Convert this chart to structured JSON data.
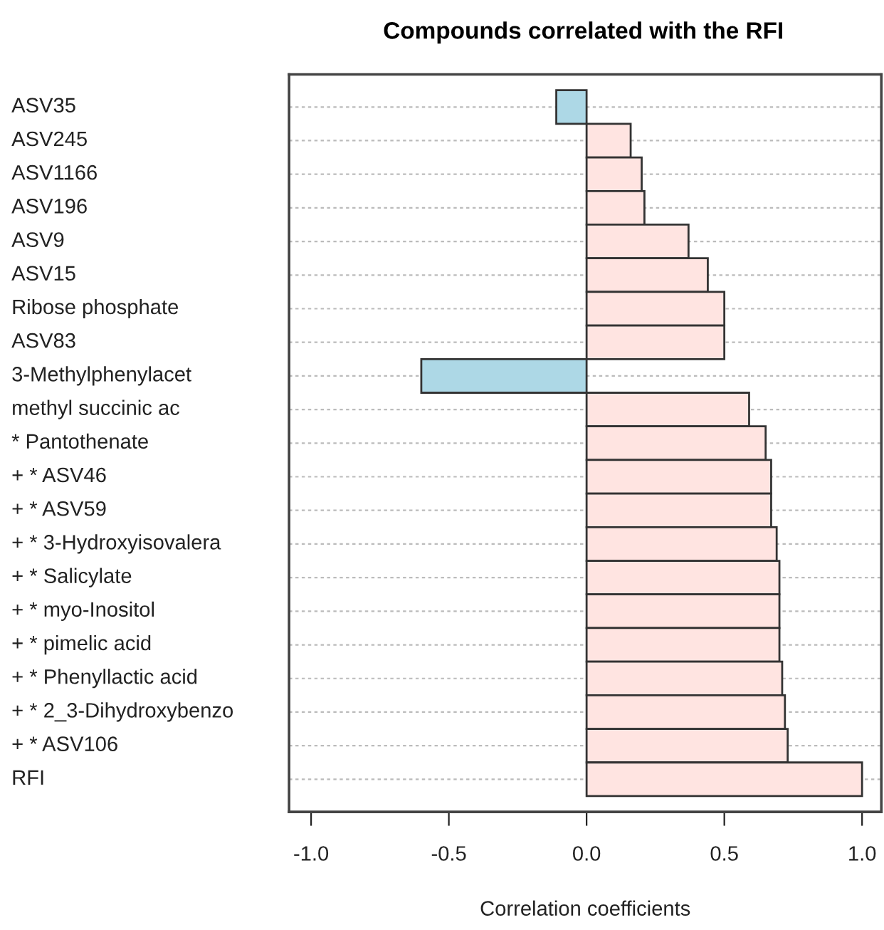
{
  "chart_data": {
    "type": "bar",
    "orientation": "horizontal",
    "title": "Compounds correlated with the RFI",
    "xlabel": "Correlation coefficients",
    "categories": [
      "ASV35",
      "ASV245",
      "ASV1166",
      "ASV196",
      "ASV9",
      "ASV15",
      "Ribose phosphate",
      "ASV83",
      "3-Methylphenylacet",
      "methyl succinic ac",
      "* Pantothenate",
      "+ * ASV46",
      "+ * ASV59",
      "+ * 3-Hydroxyisovalera",
      "+ * Salicylate",
      "+ * myo-Inositol",
      "+ * pimelic acid",
      "+ * Phenyllactic acid",
      "+ * 2_3-Dihydroxybenzo",
      "+ * ASV106",
      "RFI"
    ],
    "values": [
      -0.11,
      0.16,
      0.2,
      0.21,
      0.37,
      0.44,
      0.5,
      0.5,
      -0.6,
      0.59,
      0.65,
      0.67,
      0.67,
      0.69,
      0.7,
      0.7,
      0.7,
      0.71,
      0.72,
      0.73,
      1.0
    ],
    "colors": [
      "#add8e6",
      "#ffe4e1",
      "#ffe4e1",
      "#ffe4e1",
      "#ffe4e1",
      "#ffe4e1",
      "#ffe4e1",
      "#ffe4e1",
      "#add8e6",
      "#ffe4e1",
      "#ffe4e1",
      "#ffe4e1",
      "#ffe4e1",
      "#ffe4e1",
      "#ffe4e1",
      "#ffe4e1",
      "#ffe4e1",
      "#ffe4e1",
      "#ffe4e1",
      "#ffe4e1",
      "#ffe4e1"
    ],
    "xlim": [
      -1.08,
      1.07
    ],
    "xticks": [
      {
        "value": -1,
        "label": "-1.0"
      },
      {
        "value": -0.5,
        "label": "-0.5"
      },
      {
        "value": 0,
        "label": "0.0"
      },
      {
        "value": 0.5,
        "label": "0.5"
      },
      {
        "value": 1,
        "label": "1.0"
      }
    ],
    "grid": "y"
  }
}
